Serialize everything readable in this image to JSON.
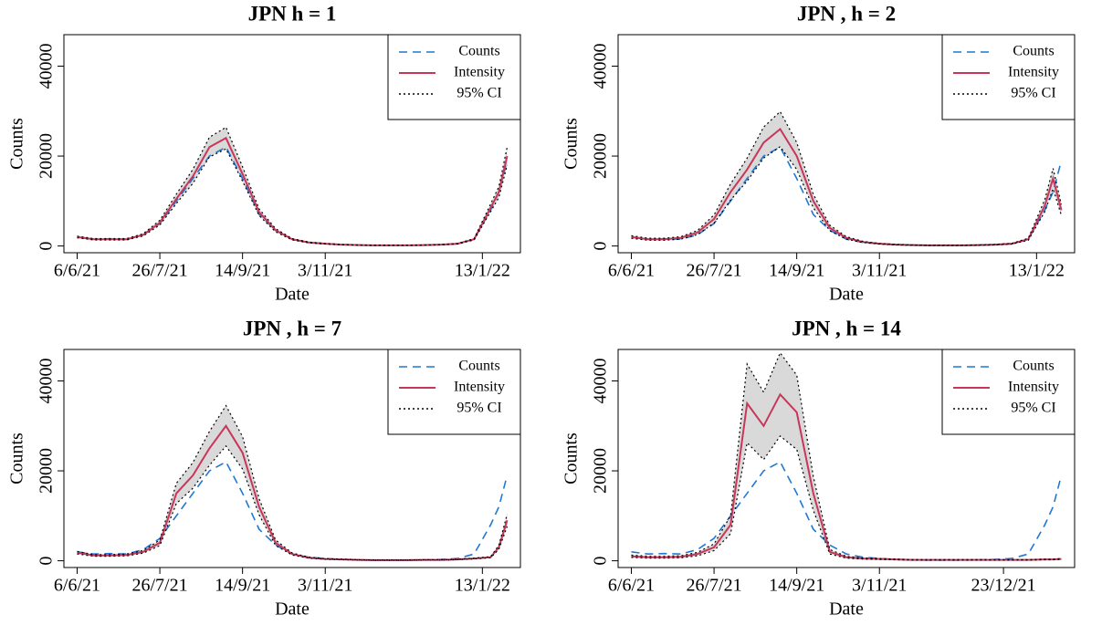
{
  "chart_data": [
    {
      "type": "line",
      "title": "JPN  h = 1",
      "x_label": "Date",
      "y_label": "Counts",
      "x": [
        0,
        10,
        20,
        30,
        40,
        50,
        60,
        70,
        80,
        90,
        100,
        110,
        120,
        130,
        140,
        150,
        160,
        170,
        180,
        190,
        200,
        210,
        220,
        230,
        240,
        250,
        255,
        260
      ],
      "xlim": [
        -8,
        268
      ],
      "ylim": [
        -1500,
        47000
      ],
      "xticks": [
        {
          "value": 0,
          "label": "6/6/21"
        },
        {
          "value": 50,
          "label": "26/7/21"
        },
        {
          "value": 100,
          "label": "14/9/21"
        },
        {
          "value": 150,
          "label": "3/11/21"
        },
        {
          "value": 245,
          "label": "13/1/22"
        }
      ],
      "yticks": [
        0,
        20000,
        40000
      ],
      "legend": "top-right",
      "band_color": "#d9d9d9",
      "series": [
        {
          "name": "Counts",
          "color": "#1f78d4",
          "linestyle": "dashed",
          "values": [
            2000,
            1500,
            1600,
            1500,
            2500,
            5000,
            10000,
            15000,
            20000,
            22000,
            15000,
            7000,
            3500,
            1500,
            800,
            500,
            300,
            200,
            150,
            150,
            150,
            200,
            300,
            500,
            1500,
            8000,
            12000,
            19000
          ]
        },
        {
          "name": "Intensity",
          "color": "#c8365a",
          "linestyle": "solid",
          "values": [
            2000,
            1500,
            1500,
            1500,
            2500,
            5200,
            10500,
            15500,
            22000,
            24000,
            16000,
            7500,
            3500,
            1500,
            800,
            500,
            300,
            200,
            150,
            150,
            150,
            200,
            300,
            500,
            1500,
            8500,
            12000,
            20000
          ]
        },
        {
          "name": "95% CI",
          "color": "#000000",
          "linestyle": "dotted",
          "lower": [
            1800,
            1350,
            1350,
            1350,
            2250,
            4680,
            9450,
            13950,
            19800,
            21600,
            14400,
            6750,
            3150,
            1350,
            720,
            450,
            270,
            180,
            135,
            135,
            135,
            180,
            270,
            450,
            1350,
            7650,
            10800,
            18000
          ],
          "upper": [
            2200,
            1650,
            1650,
            1650,
            2750,
            5720,
            11550,
            17050,
            24200,
            26400,
            17600,
            8250,
            3850,
            1650,
            880,
            550,
            330,
            220,
            165,
            165,
            165,
            220,
            330,
            550,
            1650,
            9350,
            13200,
            22000
          ]
        }
      ]
    },
    {
      "type": "line",
      "title": "JPN , h = 2",
      "x_label": "Date",
      "y_label": "Counts",
      "x": [
        0,
        10,
        20,
        30,
        40,
        50,
        60,
        70,
        80,
        90,
        100,
        110,
        120,
        130,
        140,
        150,
        160,
        170,
        180,
        190,
        200,
        210,
        220,
        230,
        240,
        250,
        255,
        260
      ],
      "xlim": [
        -8,
        268
      ],
      "ylim": [
        -1500,
        47000
      ],
      "xticks": [
        {
          "value": 0,
          "label": "6/6/21"
        },
        {
          "value": 50,
          "label": "26/7/21"
        },
        {
          "value": 100,
          "label": "14/9/21"
        },
        {
          "value": 150,
          "label": "3/11/21"
        },
        {
          "value": 245,
          "label": "13/1/22"
        }
      ],
      "yticks": [
        0,
        20000,
        40000
      ],
      "legend": "top-right",
      "band_color": "#d9d9d9",
      "series": [
        {
          "name": "Counts",
          "color": "#1f78d4",
          "linestyle": "dashed",
          "values": [
            2000,
            1500,
            1600,
            1500,
            2500,
            5000,
            10000,
            15000,
            20000,
            22000,
            15000,
            7000,
            3500,
            1500,
            800,
            500,
            300,
            200,
            150,
            150,
            150,
            200,
            300,
            500,
            1500,
            8000,
            12000,
            19000
          ]
        },
        {
          "name": "Intensity",
          "color": "#c8365a",
          "linestyle": "solid",
          "values": [
            2000,
            1500,
            1500,
            1800,
            3000,
            6000,
            12000,
            17000,
            23000,
            26000,
            20000,
            10000,
            4000,
            1800,
            900,
            500,
            300,
            200,
            150,
            150,
            150,
            200,
            300,
            500,
            1500,
            9000,
            15000,
            8000
          ]
        },
        {
          "name": "95% CI",
          "color": "#000000",
          "linestyle": "dotted",
          "lower": [
            1700,
            1275,
            1275,
            1530,
            2550,
            5100,
            10200,
            14450,
            19550,
            22100,
            17000,
            8500,
            3400,
            1530,
            765,
            425,
            255,
            170,
            128,
            128,
            128,
            170,
            255,
            425,
            1275,
            7650,
            12750,
            6800
          ],
          "upper": [
            2300,
            1725,
            1725,
            2070,
            3450,
            6900,
            13800,
            19550,
            26450,
            29900,
            23000,
            11500,
            4600,
            2070,
            1035,
            575,
            345,
            230,
            173,
            173,
            173,
            230,
            345,
            575,
            1725,
            10350,
            17250,
            9200
          ]
        }
      ]
    },
    {
      "type": "line",
      "title": "JPN , h = 7",
      "x_label": "Date",
      "y_label": "Counts",
      "x": [
        0,
        10,
        20,
        30,
        40,
        50,
        60,
        70,
        80,
        90,
        100,
        110,
        120,
        130,
        140,
        150,
        160,
        170,
        180,
        190,
        200,
        210,
        220,
        230,
        240,
        250,
        255,
        260
      ],
      "xlim": [
        -8,
        268
      ],
      "ylim": [
        -1500,
        47000
      ],
      "xticks": [
        {
          "value": 0,
          "label": "6/6/21"
        },
        {
          "value": 50,
          "label": "26/7/21"
        },
        {
          "value": 100,
          "label": "14/9/21"
        },
        {
          "value": 150,
          "label": "3/11/21"
        },
        {
          "value": 245,
          "label": "13/1/22"
        }
      ],
      "yticks": [
        0,
        20000,
        40000
      ],
      "legend": "top-right",
      "band_color": "#d9d9d9",
      "series": [
        {
          "name": "Counts",
          "color": "#1f78d4",
          "linestyle": "dashed",
          "values": [
            2000,
            1500,
            1600,
            1500,
            2500,
            5000,
            10000,
            15000,
            20000,
            22000,
            15000,
            7000,
            3500,
            1500,
            800,
            500,
            300,
            200,
            150,
            150,
            150,
            200,
            300,
            500,
            1500,
            8000,
            12000,
            19000
          ]
        },
        {
          "name": "Intensity",
          "color": "#c8365a",
          "linestyle": "solid",
          "values": [
            1800,
            1200,
            1200,
            1300,
            2000,
            4000,
            15000,
            19000,
            25000,
            30000,
            24000,
            12000,
            4000,
            1500,
            700,
            400,
            300,
            200,
            150,
            150,
            150,
            200,
            200,
            300,
            500,
            800,
            3000,
            9000
          ]
        },
        {
          "name": "95% CI",
          "color": "#000000",
          "linestyle": "dotted",
          "lower": [
            1530,
            1020,
            1020,
            1105,
            1700,
            3400,
            12750,
            16150,
            21250,
            25500,
            20400,
            10200,
            3400,
            1275,
            595,
            340,
            255,
            170,
            128,
            128,
            128,
            170,
            170,
            255,
            425,
            680,
            2550,
            7650
          ],
          "upper": [
            2070,
            1380,
            1380,
            1495,
            2300,
            4600,
            17250,
            21850,
            28750,
            34500,
            27600,
            13800,
            4600,
            1725,
            805,
            460,
            345,
            230,
            173,
            173,
            173,
            230,
            230,
            345,
            575,
            920,
            3450,
            10350
          ]
        }
      ]
    },
    {
      "type": "line",
      "title": "JPN , h = 14",
      "x_label": "Date",
      "y_label": "Counts",
      "x": [
        0,
        10,
        20,
        30,
        40,
        50,
        60,
        70,
        80,
        90,
        100,
        110,
        120,
        130,
        140,
        150,
        160,
        170,
        180,
        190,
        200,
        210,
        220,
        230,
        240,
        250,
        255,
        260
      ],
      "xlim": [
        -8,
        268
      ],
      "ylim": [
        -1500,
        47000
      ],
      "xticks": [
        {
          "value": 0,
          "label": "6/6/21"
        },
        {
          "value": 50,
          "label": "26/7/21"
        },
        {
          "value": 100,
          "label": "14/9/21"
        },
        {
          "value": 150,
          "label": "3/11/21"
        },
        {
          "value": 225,
          "label": "23/12/21"
        }
      ],
      "yticks": [
        0,
        20000,
        40000
      ],
      "legend": "top-right",
      "band_color": "#d9d9d9",
      "series": [
        {
          "name": "Counts",
          "color": "#1f78d4",
          "linestyle": "dashed",
          "values": [
            2000,
            1500,
            1600,
            1500,
            2500,
            5000,
            10000,
            15000,
            20000,
            22000,
            15000,
            7000,
            3500,
            1500,
            800,
            500,
            300,
            200,
            150,
            150,
            150,
            200,
            300,
            500,
            1500,
            8000,
            12000,
            19000
          ]
        },
        {
          "name": "Intensity",
          "color": "#c8365a",
          "linestyle": "solid",
          "values": [
            1000,
            800,
            800,
            900,
            1500,
            3000,
            8000,
            35000,
            30000,
            37000,
            33000,
            15000,
            2000,
            800,
            500,
            400,
            300,
            200,
            200,
            200,
            200,
            200,
            200,
            200,
            200,
            300,
            300,
            400
          ]
        },
        {
          "name": "95% CI",
          "color": "#000000",
          "linestyle": "dotted",
          "lower": [
            750,
            600,
            600,
            675,
            1125,
            2250,
            6000,
            26250,
            22500,
            27750,
            24750,
            11250,
            1500,
            600,
            375,
            300,
            225,
            150,
            150,
            150,
            150,
            150,
            150,
            150,
            150,
            225,
            225,
            300
          ],
          "upper": [
            1250,
            1000,
            1000,
            1125,
            1875,
            3750,
            10000,
            43750,
            37500,
            46250,
            41250,
            18750,
            2500,
            1000,
            625,
            500,
            375,
            250,
            250,
            250,
            250,
            250,
            250,
            250,
            250,
            375,
            375,
            500
          ]
        }
      ]
    }
  ]
}
